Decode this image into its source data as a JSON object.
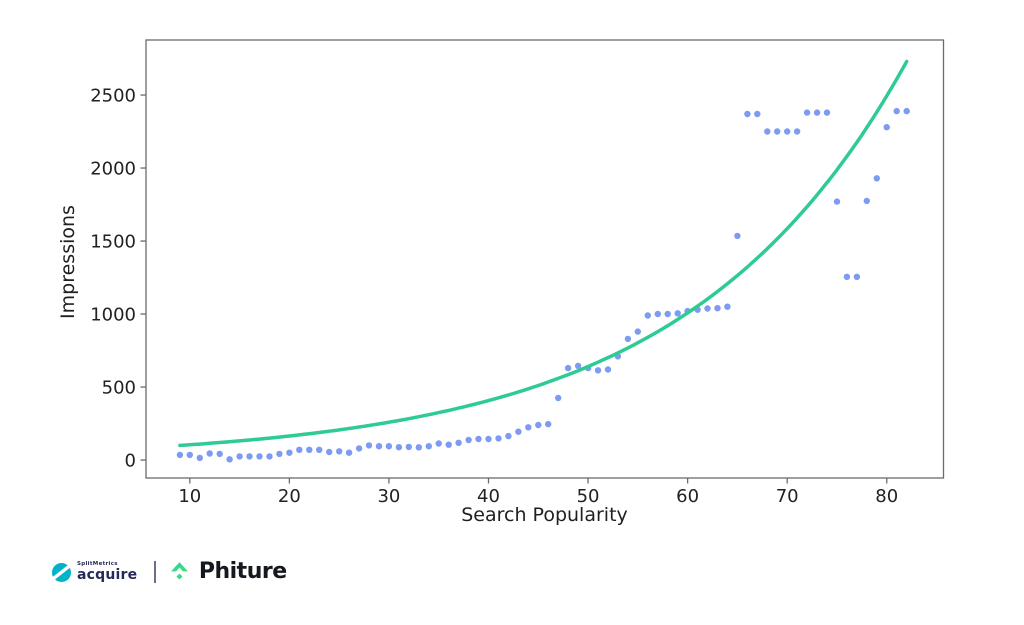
{
  "chart_data": {
    "type": "scatter",
    "xlabel": "Search Popularity",
    "ylabel": "Impressions",
    "xticks": [
      10,
      20,
      30,
      40,
      50,
      60,
      70,
      80
    ],
    "yticks": [
      0,
      500,
      1000,
      1500,
      2000,
      2500
    ],
    "xlim": [
      5.6,
      85.7
    ],
    "ylim": [
      -123,
      2877
    ],
    "grid": false,
    "legend": null,
    "series": [
      {
        "name": "impressions-by-popularity",
        "type": "scatter",
        "color": "#7d9bf0",
        "marker_radius": 3.2,
        "x": [
          9,
          10,
          11,
          12,
          13,
          14,
          15,
          16,
          17,
          18,
          19,
          20,
          21,
          22,
          23,
          24,
          25,
          26,
          27,
          28,
          29,
          30,
          31,
          32,
          33,
          34,
          35,
          36,
          37,
          38,
          39,
          40,
          41,
          42,
          43,
          44,
          45,
          46,
          47,
          48,
          49,
          50,
          51,
          52,
          53,
          54,
          55,
          56,
          57,
          58,
          59,
          60,
          61,
          62,
          63,
          64,
          65,
          66,
          67,
          68,
          69,
          70,
          71,
          72,
          73,
          74,
          75,
          76,
          77,
          78,
          79,
          80,
          81,
          82
        ],
        "y": [
          35,
          35,
          15,
          45,
          42,
          5,
          25,
          25,
          25,
          25,
          42,
          50,
          70,
          70,
          70,
          55,
          60,
          50,
          80,
          100,
          95,
          95,
          88,
          90,
          87,
          95,
          113,
          105,
          118,
          137,
          144,
          144,
          148,
          164,
          194,
          224,
          240,
          246,
          425,
          630,
          645,
          630,
          615,
          620,
          710,
          830,
          880,
          990,
          1000,
          1000,
          1005,
          1020,
          1030,
          1038,
          1040,
          1050,
          1535,
          2370,
          2370,
          2250,
          2250,
          2250,
          2250,
          2380,
          2380,
          2380,
          1770,
          1255,
          1255,
          1775,
          1930,
          2280,
          2390,
          2390
        ]
      },
      {
        "name": "exponential-trend",
        "type": "line",
        "model": "exponential",
        "color": "#2ecb92",
        "stroke_width": 3.5,
        "x_start": 9,
        "x_end": 82,
        "y_start": 100,
        "y_end": 2730
      }
    ]
  },
  "style_colors": {
    "background": "#ffffff",
    "spine": "#6b6b6b",
    "tick_text": "#222222"
  },
  "footer": {
    "splitmetrics_brand": "SplitMetrics",
    "splitmetrics_product": "acquire",
    "splitmetrics_color": "#00b3c7",
    "phiture_brand": "Phiture",
    "phiture_gradient_start": "#29cfa8",
    "phiture_gradient_end": "#47e06c"
  }
}
